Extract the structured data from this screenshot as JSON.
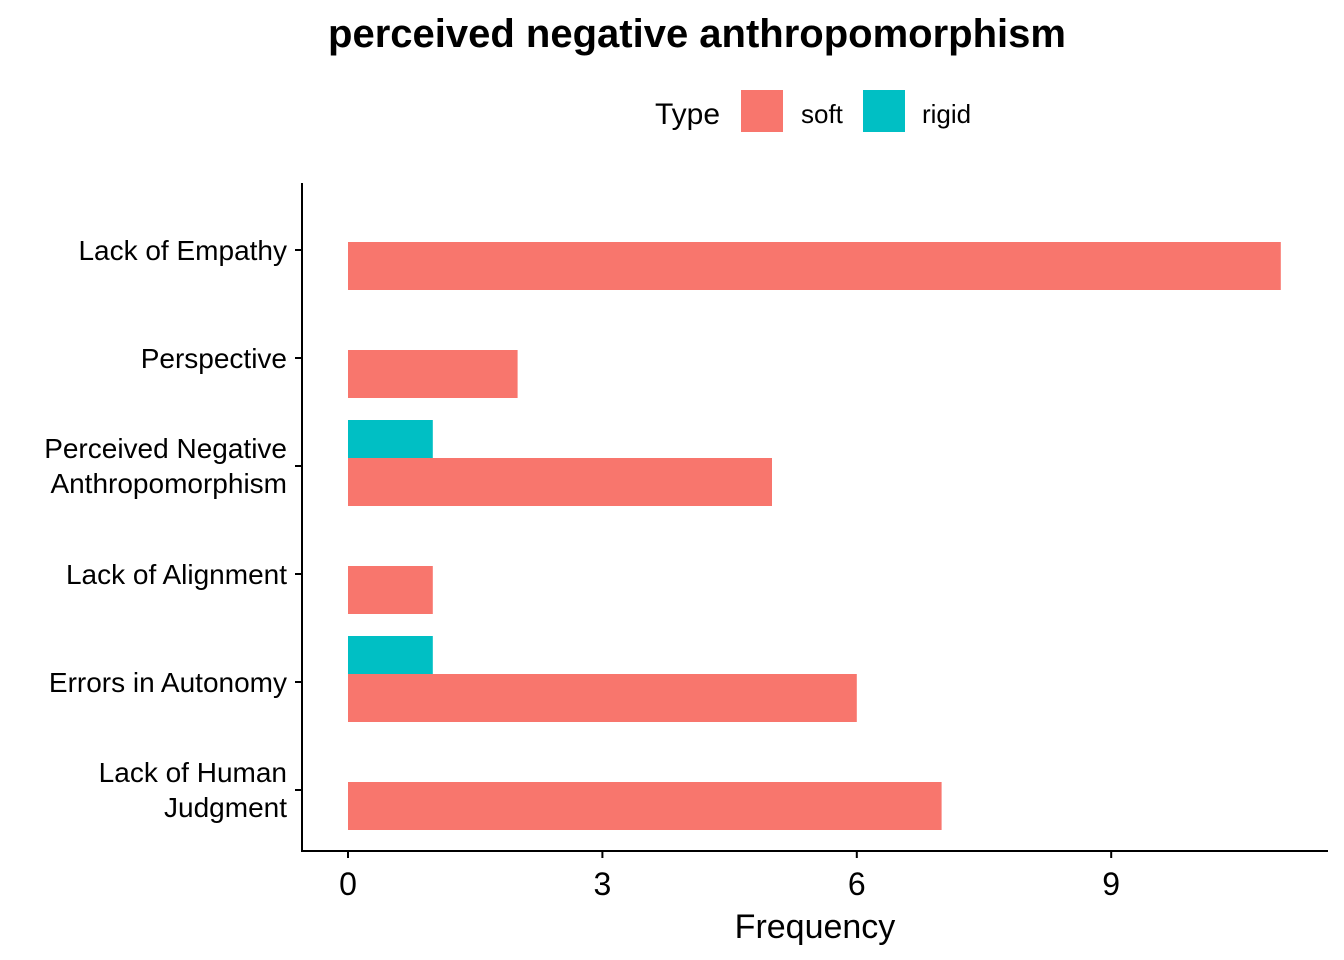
{
  "chart_data": {
    "type": "bar",
    "orientation": "horizontal",
    "title": "perceived negative anthropomorphism",
    "xlabel": "Frequency",
    "ylabel": "",
    "xlim": [
      0,
      11.5
    ],
    "x_ticks": [
      0,
      3,
      6,
      9
    ],
    "grid": false,
    "legend": {
      "title": "Type",
      "position": "top"
    },
    "categories": [
      [
        "Lack of Empathy"
      ],
      [
        "Perspective"
      ],
      [
        "Perceived Negative",
        "Anthropomorphism"
      ],
      [
        "Lack of Alignment"
      ],
      [
        "Errors in Autonomy"
      ],
      [
        "Lack of Human",
        "Judgment"
      ]
    ],
    "series": [
      {
        "name": "soft",
        "color": "#F8766D",
        "values": [
          11,
          2,
          5,
          1,
          6,
          7
        ]
      },
      {
        "name": "rigid",
        "color": "#00BFC4",
        "values": [
          0,
          0,
          1,
          0,
          1,
          0
        ]
      }
    ]
  }
}
